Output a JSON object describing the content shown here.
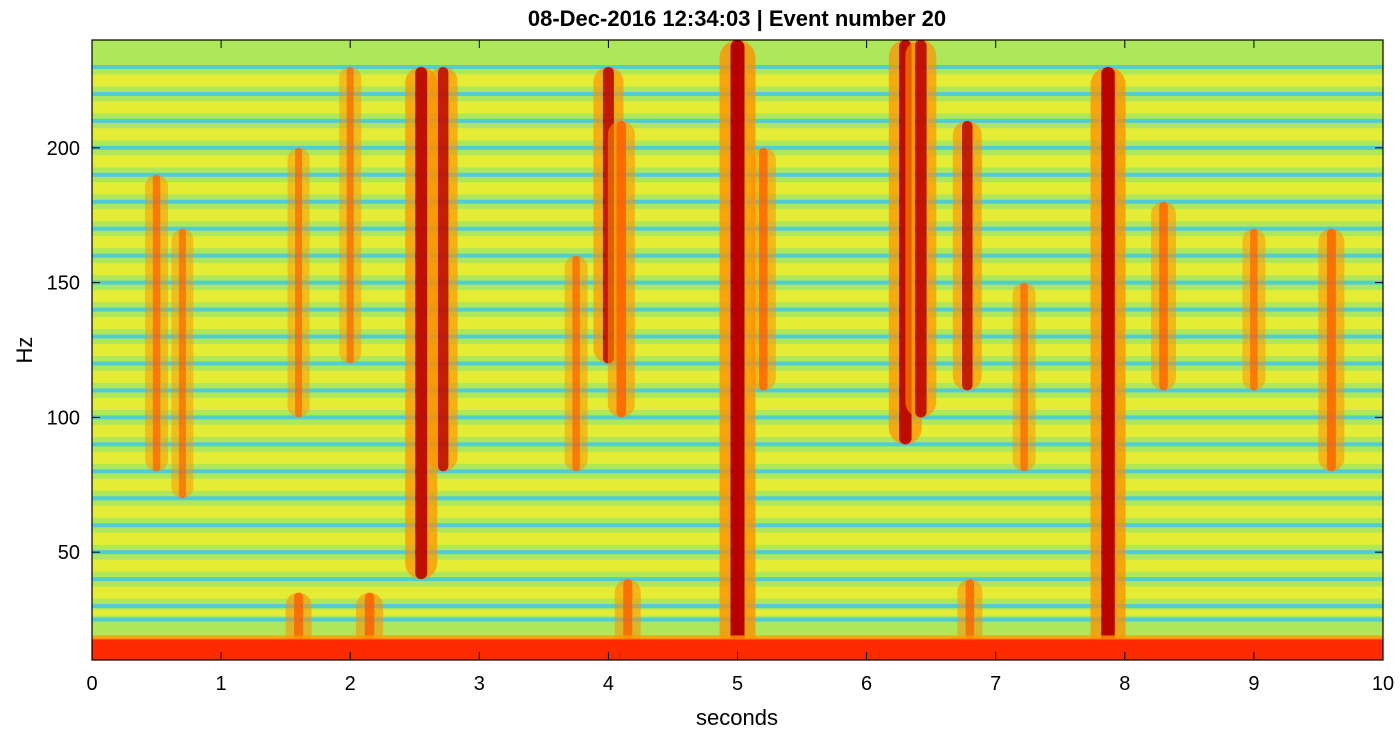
{
  "chart_data": {
    "type": "heatmap",
    "title": "08-Dec-2016 12:34:03 | Event number 20",
    "xlabel": "seconds",
    "ylabel": "Hz",
    "xlim": [
      0,
      10
    ],
    "ylim": [
      10,
      240
    ],
    "x_ticks": [
      0,
      1,
      2,
      3,
      4,
      5,
      6,
      7,
      8,
      9,
      10
    ],
    "x_tick_labels": [
      "0",
      "1",
      "2",
      "3",
      "4",
      "5",
      "6",
      "7",
      "8",
      "9",
      "10"
    ],
    "y_ticks": [
      50,
      100,
      150,
      200
    ],
    "y_tick_labels": [
      "50",
      "100",
      "150",
      "200"
    ],
    "colormap": "jet",
    "colors": {
      "background": "#aee85a",
      "band_low": "#ff2a00",
      "harmonic_line": "#3ec8e8",
      "event_core": "#b80000",
      "event_halo": "#ff8c00"
    },
    "low_band": {
      "from_hz": 10,
      "to_hz": 18,
      "intensity": 1.0
    },
    "harmonic_lines_hz": [
      25,
      30,
      40,
      50,
      60,
      70,
      80,
      90,
      100,
      110,
      120,
      130,
      140,
      150,
      160,
      170,
      180,
      190,
      200,
      210,
      220,
      230
    ],
    "events": [
      {
        "t": 0.5,
        "f_low": 80,
        "f_high": 190,
        "intensity": 0.35
      },
      {
        "t": 0.7,
        "f_low": 70,
        "f_high": 170,
        "intensity": 0.3
      },
      {
        "t": 1.6,
        "f_low": 15,
        "f_high": 35,
        "intensity": 0.5
      },
      {
        "t": 1.6,
        "f_low": 100,
        "f_high": 200,
        "intensity": 0.3
      },
      {
        "t": 2.0,
        "f_low": 120,
        "f_high": 230,
        "intensity": 0.3
      },
      {
        "t": 2.15,
        "f_low": 15,
        "f_high": 35,
        "intensity": 0.55
      },
      {
        "t": 2.55,
        "f_low": 40,
        "f_high": 230,
        "intensity": 0.8
      },
      {
        "t": 2.72,
        "f_low": 80,
        "f_high": 230,
        "intensity": 0.65
      },
      {
        "t": 3.75,
        "f_low": 80,
        "f_high": 160,
        "intensity": 0.35
      },
      {
        "t": 4.0,
        "f_low": 120,
        "f_high": 230,
        "intensity": 0.7
      },
      {
        "t": 4.1,
        "f_low": 100,
        "f_high": 210,
        "intensity": 0.55
      },
      {
        "t": 4.15,
        "f_low": 15,
        "f_high": 40,
        "intensity": 0.5
      },
      {
        "t": 5.0,
        "f_low": 10,
        "f_high": 240,
        "intensity": 1.0
      },
      {
        "t": 5.2,
        "f_low": 110,
        "f_high": 200,
        "intensity": 0.45
      },
      {
        "t": 6.3,
        "f_low": 90,
        "f_high": 240,
        "intensity": 0.85
      },
      {
        "t": 6.42,
        "f_low": 100,
        "f_high": 240,
        "intensity": 0.75
      },
      {
        "t": 6.78,
        "f_low": 110,
        "f_high": 210,
        "intensity": 0.65
      },
      {
        "t": 6.8,
        "f_low": 15,
        "f_high": 40,
        "intensity": 0.45
      },
      {
        "t": 7.22,
        "f_low": 80,
        "f_high": 150,
        "intensity": 0.35
      },
      {
        "t": 7.87,
        "f_low": 10,
        "f_high": 230,
        "intensity": 0.95
      },
      {
        "t": 8.3,
        "f_low": 110,
        "f_high": 180,
        "intensity": 0.45
      },
      {
        "t": 9.0,
        "f_low": 110,
        "f_high": 170,
        "intensity": 0.35
      },
      {
        "t": 9.6,
        "f_low": 80,
        "f_high": 170,
        "intensity": 0.5
      }
    ]
  }
}
